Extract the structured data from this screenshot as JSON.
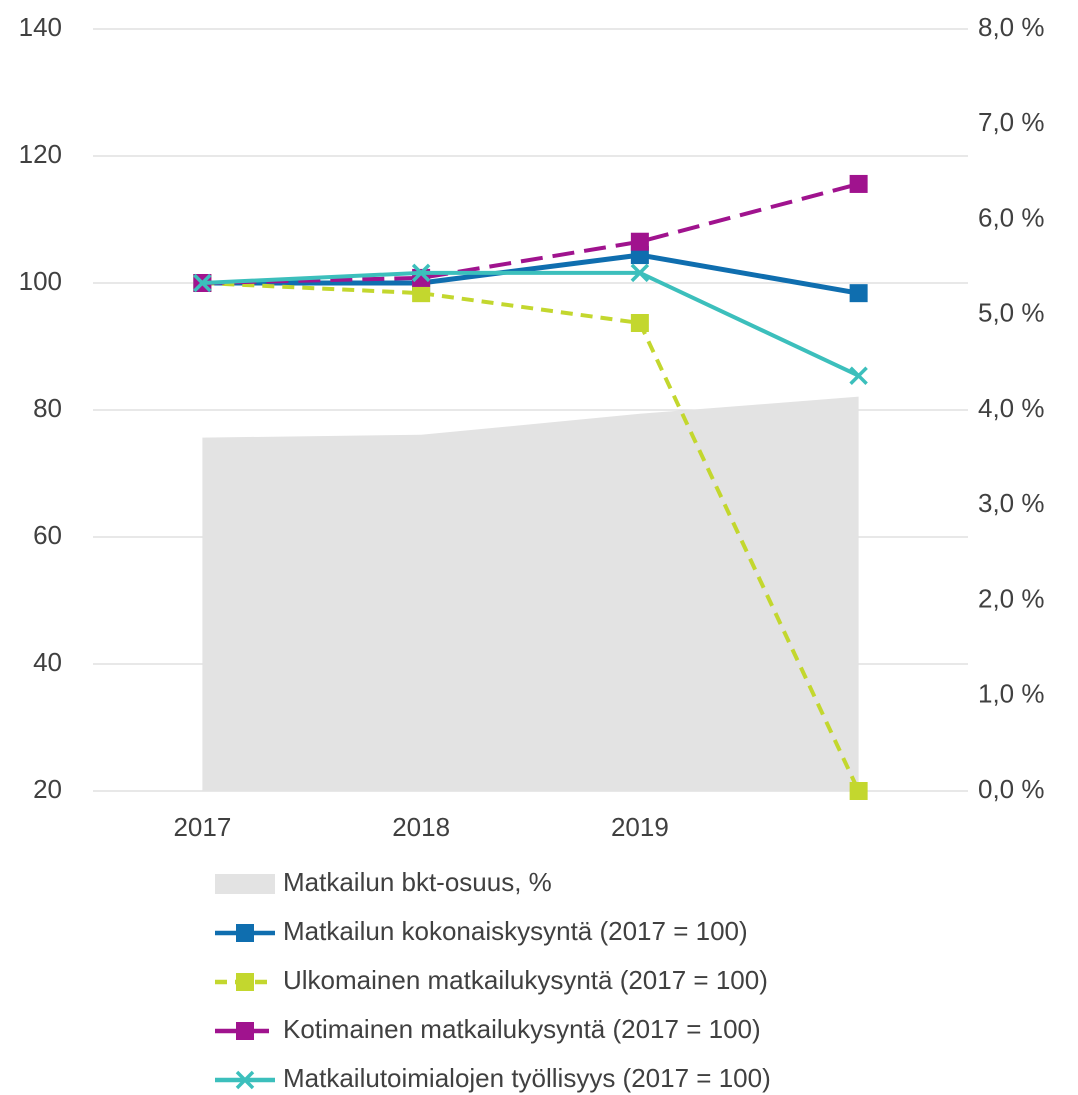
{
  "chart_data": {
    "type": "line",
    "categories": [
      "2017",
      "2018",
      "2019",
      null
    ],
    "ylim": [
      20,
      140
    ],
    "yticks": [
      20,
      40,
      60,
      80,
      100,
      120,
      140
    ],
    "y2lim": [
      0,
      8
    ],
    "y2ticks": [
      {
        "value": 0,
        "label": "0,0 %"
      },
      {
        "value": 1,
        "label": "1,0 %"
      },
      {
        "value": 2,
        "label": "2,0 %"
      },
      {
        "value": 3,
        "label": "3,0 %"
      },
      {
        "value": 4,
        "label": "4,0 %"
      },
      {
        "value": 5,
        "label": "5,0 %"
      },
      {
        "value": 6,
        "label": "6,0 %"
      },
      {
        "value": 7,
        "label": "7,0 %"
      },
      {
        "value": 8,
        "label": "8,0 %"
      }
    ],
    "grid": true,
    "legend": "bottom",
    "series": [
      {
        "name": "Matkailun bkt-osuus, %",
        "type": "area",
        "axis": "y2",
        "color": "#e3e3e3",
        "values": [
          3.71,
          3.74,
          3.96,
          4.14
        ]
      },
      {
        "name": "Matkailun kokonaiskysyntä (2017 = 100)",
        "color": "#0f6eaf",
        "line_style": "solid",
        "marker": "square",
        "values": [
          100,
          100,
          104.4,
          98.4
        ]
      },
      {
        "name": "Ulkomainen matkailukysyntä (2017 = 100)",
        "color": "#c3d72e",
        "line_style": "dashed",
        "marker": "square",
        "values": [
          100,
          98.4,
          93.7,
          20
        ]
      },
      {
        "name": "Kotimainen matkailukysyntä (2017 = 100)",
        "color": "#a0138e",
        "line_style": "long-dashed",
        "marker": "square",
        "values": [
          100,
          100.8,
          106.5,
          115.6
        ]
      },
      {
        "name": "Matkailutoimialojen työllisyys (2017 = 100)",
        "color": "#3cbfbc",
        "line_style": "solid",
        "marker": "x",
        "values": [
          100,
          101.6,
          101.6,
          85.4
        ]
      }
    ]
  }
}
